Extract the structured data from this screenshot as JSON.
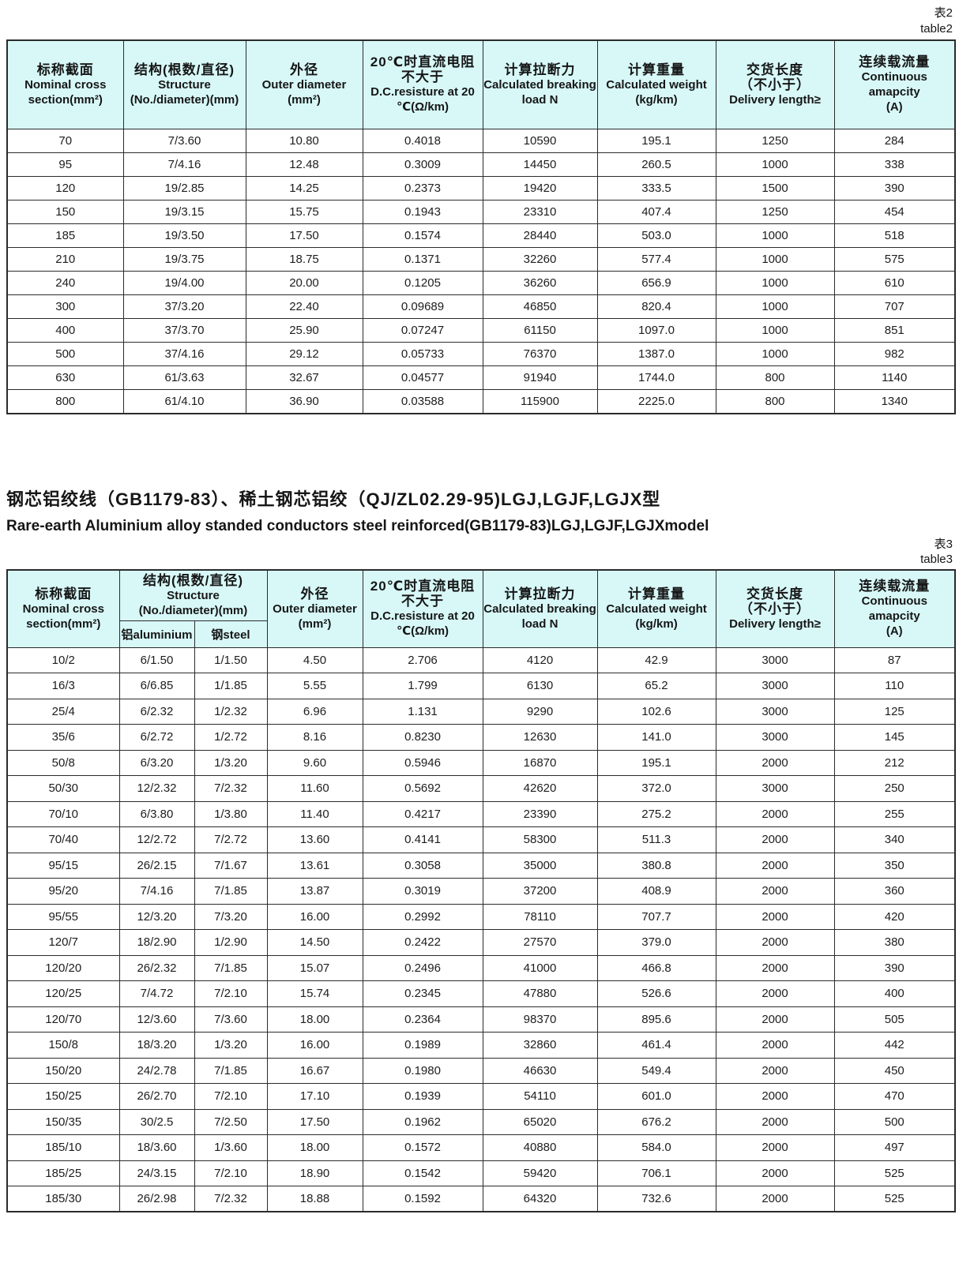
{
  "labels": {
    "table2_zh": "表2",
    "table2_en": "table2",
    "table3_zh": "表3",
    "table3_en": "table3"
  },
  "section": {
    "title_zh": "钢芯铝绞线（GB1179-83）、稀土钢芯铝绞（QJ/ZL02.29-95)LGJ,LGJF,LGJX型",
    "title_en": "Rare-earth Aluminium alloy standed conductors steel reinforced(GB1179-83)LGJ,LGJF,LGJXmodel"
  },
  "colors": {
    "header_bg": "#d8f8f8",
    "border": "#2b2b2b",
    "page_bg": "#ffffff"
  },
  "columns": [
    {
      "id": "nominal-cross-section",
      "lines": [
        "标称截面",
        "Nominal cross",
        "section(mm²)"
      ]
    },
    {
      "id": "structure",
      "lines": [
        "结构(根数/直径)",
        "Structure",
        "(No./diameter)(mm)"
      ]
    },
    {
      "id": "outer-diameter",
      "lines": [
        "外径",
        "Outer diameter",
        "(mm²)"
      ]
    },
    {
      "id": "dc-resistance",
      "lines": [
        "20℃时直流电阻",
        "不大于",
        "D.C.resisture at 20",
        "℃(Ω/km)"
      ]
    },
    {
      "id": "breaking-load",
      "lines": [
        "计算拉断力",
        "Calculated breaking",
        "load N"
      ]
    },
    {
      "id": "calculated-weight",
      "lines": [
        "计算重量",
        "Calculated weight",
        "(kg/km)"
      ]
    },
    {
      "id": "delivery-length",
      "lines": [
        "交货长度",
        "（不小于）",
        "Delivery length≥"
      ]
    },
    {
      "id": "continuous-ampacity",
      "lines": [
        "连续载流量",
        "Continuous amapcity",
        "(A)"
      ]
    }
  ],
  "structure_subcolumns": [
    "铝aluminium",
    "钢steel"
  ],
  "table2": {
    "col_ids": [
      "nominal",
      "structure",
      "outer-diameter",
      "dc-resistance",
      "breaking-load",
      "weight",
      "delivery-length",
      "ampacity"
    ],
    "rows": [
      [
        "70",
        "7/3.60",
        "10.80",
        "0.4018",
        "10590",
        "195.1",
        "1250",
        "284"
      ],
      [
        "95",
        "7/4.16",
        "12.48",
        "0.3009",
        "14450",
        "260.5",
        "1000",
        "338"
      ],
      [
        "120",
        "19/2.85",
        "14.25",
        "0.2373",
        "19420",
        "333.5",
        "1500",
        "390"
      ],
      [
        "150",
        "19/3.15",
        "15.75",
        "0.1943",
        "23310",
        "407.4",
        "1250",
        "454"
      ],
      [
        "185",
        "19/3.50",
        "17.50",
        "0.1574",
        "28440",
        "503.0",
        "1000",
        "518"
      ],
      [
        "210",
        "19/3.75",
        "18.75",
        "0.1371",
        "32260",
        "577.4",
        "1000",
        "575"
      ],
      [
        "240",
        "19/4.00",
        "20.00",
        "0.1205",
        "36260",
        "656.9",
        "1000",
        "610"
      ],
      [
        "300",
        "37/3.20",
        "22.40",
        "0.09689",
        "46850",
        "820.4",
        "1000",
        "707"
      ],
      [
        "400",
        "37/3.70",
        "25.90",
        "0.07247",
        "61150",
        "1097.0",
        "1000",
        "851"
      ],
      [
        "500",
        "37/4.16",
        "29.12",
        "0.05733",
        "76370",
        "1387.0",
        "1000",
        "982"
      ],
      [
        "630",
        "61/3.63",
        "32.67",
        "0.04577",
        "91940",
        "1744.0",
        "800",
        "1140"
      ],
      [
        "800",
        "61/4.10",
        "36.90",
        "0.03588",
        "115900",
        "2225.0",
        "800",
        "1340"
      ]
    ]
  },
  "table3": {
    "col_ids": [
      "nominal",
      "structure-aluminium",
      "structure-steel",
      "outer-diameter",
      "dc-resistance",
      "breaking-load",
      "weight",
      "delivery-length",
      "ampacity"
    ],
    "rows": [
      [
        "10/2",
        "6/1.50",
        "1/1.50",
        "4.50",
        "2.706",
        "4120",
        "42.9",
        "3000",
        "87"
      ],
      [
        "16/3",
        "6/6.85",
        "1/1.85",
        "5.55",
        "1.799",
        "6130",
        "65.2",
        "3000",
        "110"
      ],
      [
        "25/4",
        "6/2.32",
        "1/2.32",
        "6.96",
        "1.131",
        "9290",
        "102.6",
        "3000",
        "125"
      ],
      [
        "35/6",
        "6/2.72",
        "1/2.72",
        "8.16",
        "0.8230",
        "12630",
        "141.0",
        "3000",
        "145"
      ],
      [
        "50/8",
        "6/3.20",
        "1/3.20",
        "9.60",
        "0.5946",
        "16870",
        "195.1",
        "2000",
        "212"
      ],
      [
        "50/30",
        "12/2.32",
        "7/2.32",
        "11.60",
        "0.5692",
        "42620",
        "372.0",
        "3000",
        "250"
      ],
      [
        "70/10",
        "6/3.80",
        "1/3.80",
        "11.40",
        "0.4217",
        "23390",
        "275.2",
        "2000",
        "255"
      ],
      [
        "70/40",
        "12/2.72",
        "7/2.72",
        "13.60",
        "0.4141",
        "58300",
        "511.3",
        "2000",
        "340"
      ],
      [
        "95/15",
        "26/2.15",
        "7/1.67",
        "13.61",
        "0.3058",
        "35000",
        "380.8",
        "2000",
        "350"
      ],
      [
        "95/20",
        "7/4.16",
        "7/1.85",
        "13.87",
        "0.3019",
        "37200",
        "408.9",
        "2000",
        "360"
      ],
      [
        "95/55",
        "12/3.20",
        "7/3.20",
        "16.00",
        "0.2992",
        "78110",
        "707.7",
        "2000",
        "420"
      ],
      [
        "120/7",
        "18/2.90",
        "1/2.90",
        "14.50",
        "0.2422",
        "27570",
        "379.0",
        "2000",
        "380"
      ],
      [
        "120/20",
        "26/2.32",
        "7/1.85",
        "15.07",
        "0.2496",
        "41000",
        "466.8",
        "2000",
        "390"
      ],
      [
        "120/25",
        "7/4.72",
        "7/2.10",
        "15.74",
        "0.2345",
        "47880",
        "526.6",
        "2000",
        "400"
      ],
      [
        "120/70",
        "12/3.60",
        "7/3.60",
        "18.00",
        "0.2364",
        "98370",
        "895.6",
        "2000",
        "505"
      ],
      [
        "150/8",
        "18/3.20",
        "1/3.20",
        "16.00",
        "0.1989",
        "32860",
        "461.4",
        "2000",
        "442"
      ],
      [
        "150/20",
        "24/2.78",
        "7/1.85",
        "16.67",
        "0.1980",
        "46630",
        "549.4",
        "2000",
        "450"
      ],
      [
        "150/25",
        "26/2.70",
        "7/2.10",
        "17.10",
        "0.1939",
        "54110",
        "601.0",
        "2000",
        "470"
      ],
      [
        "150/35",
        "30/2.5",
        "7/2.50",
        "17.50",
        "0.1962",
        "65020",
        "676.2",
        "2000",
        "500"
      ],
      [
        "185/10",
        "18/3.60",
        "1/3.60",
        "18.00",
        "0.1572",
        "40880",
        "584.0",
        "2000",
        "497"
      ],
      [
        "185/25",
        "24/3.15",
        "7/2.10",
        "18.90",
        "0.1542",
        "59420",
        "706.1",
        "2000",
        "525"
      ],
      [
        "185/30",
        "26/2.98",
        "7/2.32",
        "18.88",
        "0.1592",
        "64320",
        "732.6",
        "2000",
        "525"
      ]
    ]
  }
}
